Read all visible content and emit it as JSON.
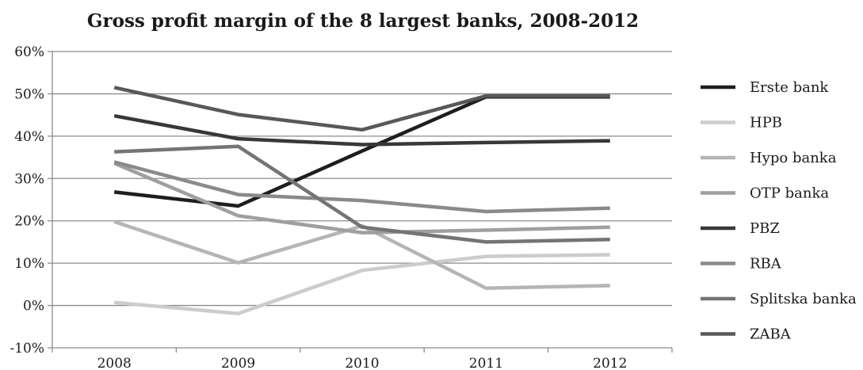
{
  "chart_data": {
    "type": "line",
    "title": "Gross profit margin of the 8 largest banks, 2008-2012",
    "xlabel": "",
    "ylabel": "",
    "categories": [
      "2008",
      "2009",
      "2010",
      "2011",
      "2012"
    ],
    "ylim": [
      -10,
      60
    ],
    "yticks": [
      -10,
      0,
      10,
      20,
      30,
      40,
      50,
      60
    ],
    "ytick_labels": [
      "-10%",
      "0%",
      "10%",
      "20%",
      "30%",
      "40%",
      "50%",
      "60%"
    ],
    "grid": true,
    "legend_position": "right",
    "series": [
      {
        "name": "Erste bank",
        "color": "#1e1e1e",
        "values": [
          26.8,
          23.5,
          36.5,
          49.3,
          49.3
        ]
      },
      {
        "name": "HPB",
        "color": "#cccccc",
        "values": [
          0.7,
          -1.9,
          8.3,
          11.6,
          12.0
        ]
      },
      {
        "name": "Hypo banka",
        "color": "#b5b5b5",
        "values": [
          19.8,
          10.1,
          18.8,
          4.1,
          4.7
        ]
      },
      {
        "name": "OTP banka",
        "color": "#9f9f9f",
        "values": [
          33.6,
          21.2,
          17.2,
          17.8,
          18.5
        ]
      },
      {
        "name": "PBZ",
        "color": "#383838",
        "values": [
          44.8,
          39.4,
          38.0,
          38.5,
          38.9
        ]
      },
      {
        "name": "RBA",
        "color": "#8a8a8a",
        "values": [
          33.9,
          26.2,
          24.8,
          22.2,
          23.0
        ]
      },
      {
        "name": "Splitska banka",
        "color": "#747474",
        "values": [
          36.3,
          37.6,
          18.5,
          15.0,
          15.6
        ]
      },
      {
        "name": "ZABA",
        "color": "#585858",
        "values": [
          51.5,
          45.1,
          41.5,
          49.5,
          49.5
        ]
      }
    ]
  }
}
